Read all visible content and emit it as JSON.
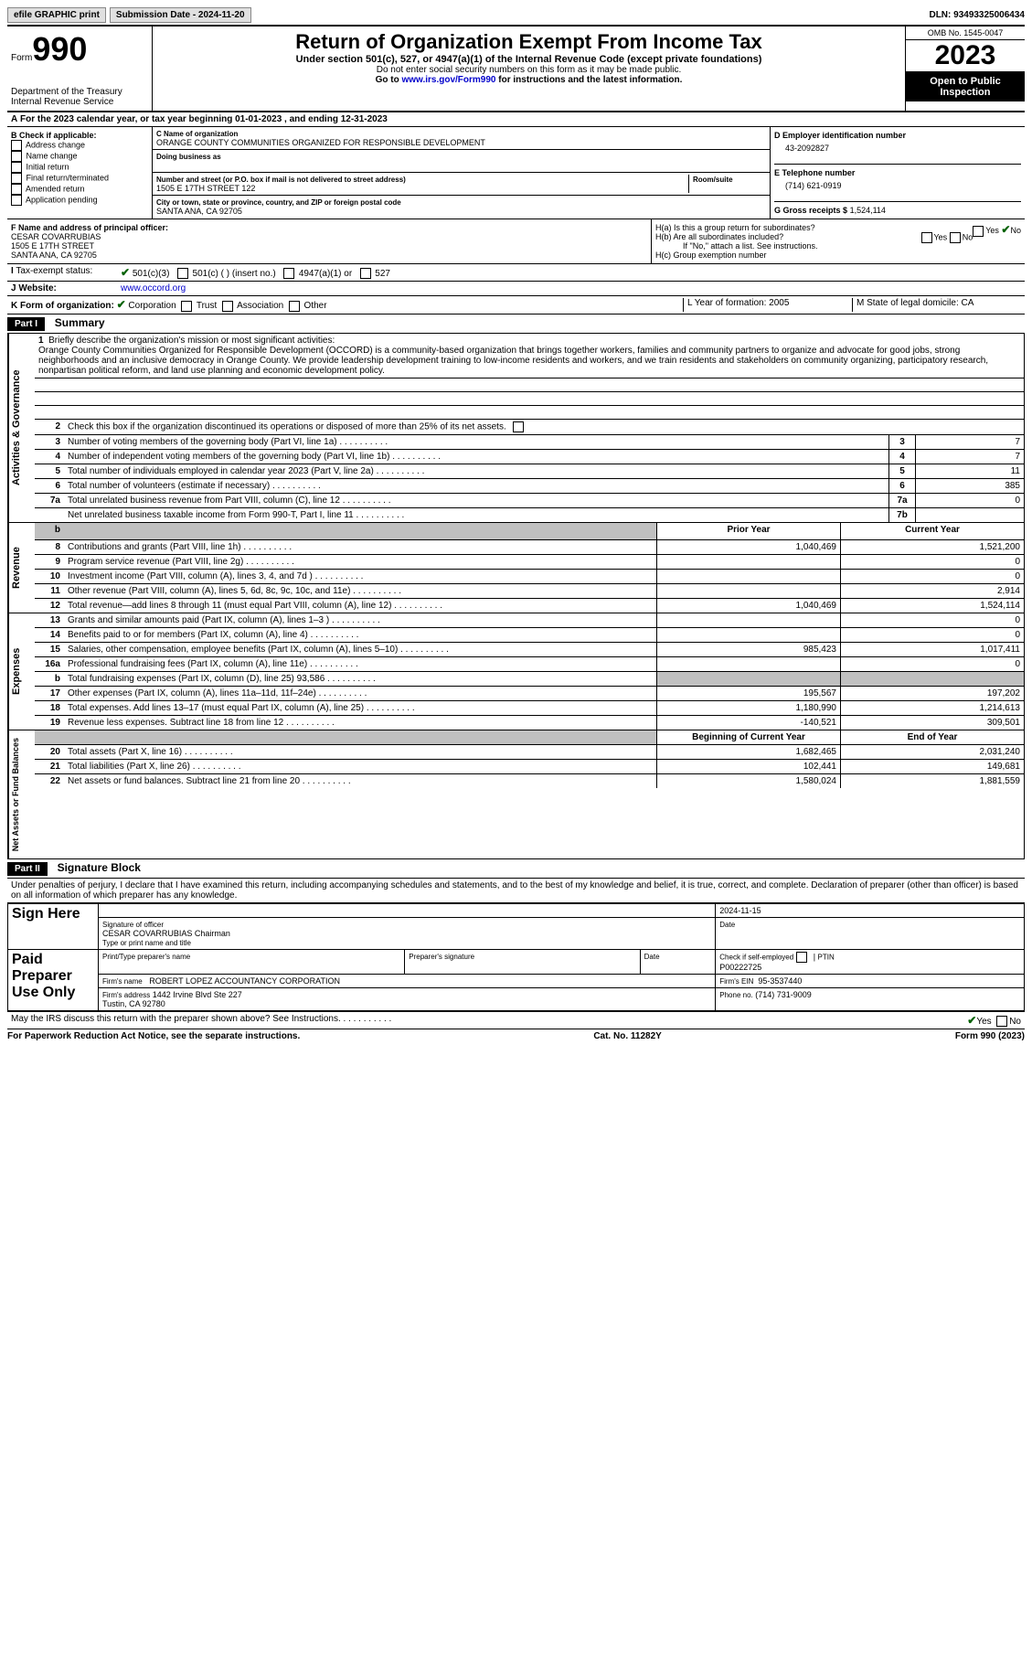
{
  "top": {
    "efile": "efile GRAPHIC print",
    "sub_label": "Submission Date - 2024-11-20",
    "dln": "DLN: 93493325006434"
  },
  "header": {
    "form_word": "Form",
    "form_num": "990",
    "dept": "Department of the Treasury\nInternal Revenue Service",
    "title": "Return of Organization Exempt From Income Tax",
    "sub1": "Under section 501(c), 527, or 4947(a)(1) of the Internal Revenue Code (except private foundations)",
    "sub2": "Do not enter social security numbers on this form as it may be made public.",
    "sub3": "Go to www.irs.gov/Form990 for instructions and the latest information.",
    "omb": "OMB No. 1545-0047",
    "year": "2023",
    "inspection": "Open to Public Inspection"
  },
  "A": "For the 2023 calendar year, or tax year beginning 01-01-2023   , and ending 12-31-2023",
  "B": {
    "label": "B Check if applicable:",
    "opts": [
      "Address change",
      "Name change",
      "Initial return",
      "Final return/terminated",
      "Amended return",
      "Application pending"
    ]
  },
  "C": {
    "name_lbl": "C Name of organization",
    "name": "ORANGE COUNTY COMMUNITIES ORGANIZED FOR RESPONSIBLE DEVELOPMENT",
    "dba_lbl": "Doing business as",
    "addr_lbl": "Number and street (or P.O. box if mail is not delivered to street address)",
    "addr": "1505 E 17TH STREET 122",
    "room_lbl": "Room/suite",
    "city_lbl": "City or town, state or province, country, and ZIP or foreign postal code",
    "city": "SANTA ANA, CA  92705"
  },
  "D": {
    "ein_lbl": "D Employer identification number",
    "ein": "43-2092827",
    "phone_lbl": "E Telephone number",
    "phone": "(714) 621-0919",
    "gross_lbl": "G Gross receipts $",
    "gross": "1,524,114"
  },
  "F": {
    "lbl": "F Name and address of principal officer:",
    "name": "CESAR COVARRUBIAS",
    "addr1": "1505 E 17TH STREET",
    "addr2": "SANTA ANA, CA  92705"
  },
  "H": {
    "a": "H(a)  Is this a group return for subordinates?",
    "a_yes": "Yes",
    "a_no": "No",
    "b": "H(b)  Are all subordinates included?",
    "b_note": "If \"No,\" attach a list. See instructions.",
    "c": "H(c)  Group exemption number"
  },
  "I": {
    "lbl": "Tax-exempt status:",
    "o1": "501(c)(3)",
    "o2": "501(c) (  ) (insert no.)",
    "o3": "4947(a)(1) or",
    "o4": "527"
  },
  "J": {
    "lbl": "Website:",
    "val": "www.occord.org"
  },
  "K": {
    "lbl": "K Form of organization:",
    "opts": [
      "Corporation",
      "Trust",
      "Association",
      "Other"
    ]
  },
  "L": "L Year of formation: 2005",
  "M": "M State of legal domicile: CA",
  "part1": {
    "hdr": "Part I",
    "title": "Summary",
    "q1_lbl": "Briefly describe the organization's mission or most significant activities:",
    "mission": "Orange County Communities Organized for Responsible Development (OCCORD) is a community-based organization that brings together workers, families and community partners to organize and advocate for good jobs, strong neighborhoods and an inclusive democracy in Orange County. We provide leadership development training to low-income residents and workers, and we train residents and stakeholders on community organizing, participatory research, nonpartisan political reform, and land use planning and economic development policy.",
    "q2": "Check this box      if the organization discontinued its operations or disposed of more than 25% of its net assets.",
    "rows_gov": [
      {
        "n": "3",
        "t": "Number of voting members of the governing body (Part VI, line 1a)",
        "box": "3",
        "v": "7"
      },
      {
        "n": "4",
        "t": "Number of independent voting members of the governing body (Part VI, line 1b)",
        "box": "4",
        "v": "7"
      },
      {
        "n": "5",
        "t": "Total number of individuals employed in calendar year 2023 (Part V, line 2a)",
        "box": "5",
        "v": "11"
      },
      {
        "n": "6",
        "t": "Total number of volunteers (estimate if necessary)",
        "box": "6",
        "v": "385"
      },
      {
        "n": "7a",
        "t": "Total unrelated business revenue from Part VIII, column (C), line 12",
        "box": "7a",
        "v": "0"
      },
      {
        "n": "",
        "t": "Net unrelated business taxable income from Form 990-T, Part I, line 11",
        "box": "7b",
        "v": ""
      }
    ],
    "prior_hdr": "Prior Year",
    "curr_hdr": "Current Year",
    "rows_rev": [
      {
        "n": "8",
        "t": "Contributions and grants (Part VIII, line 1h)",
        "p": "1,040,469",
        "c": "1,521,200"
      },
      {
        "n": "9",
        "t": "Program service revenue (Part VIII, line 2g)",
        "p": "",
        "c": "0"
      },
      {
        "n": "10",
        "t": "Investment income (Part VIII, column (A), lines 3, 4, and 7d )",
        "p": "",
        "c": "0"
      },
      {
        "n": "11",
        "t": "Other revenue (Part VIII, column (A), lines 5, 6d, 8c, 9c, 10c, and 11e)",
        "p": "",
        "c": "2,914"
      },
      {
        "n": "12",
        "t": "Total revenue—add lines 8 through 11 (must equal Part VIII, column (A), line 12)",
        "p": "1,040,469",
        "c": "1,524,114"
      }
    ],
    "rows_exp": [
      {
        "n": "13",
        "t": "Grants and similar amounts paid (Part IX, column (A), lines 1–3 )",
        "p": "",
        "c": "0"
      },
      {
        "n": "14",
        "t": "Benefits paid to or for members (Part IX, column (A), line 4)",
        "p": "",
        "c": "0"
      },
      {
        "n": "15",
        "t": "Salaries, other compensation, employee benefits (Part IX, column (A), lines 5–10)",
        "p": "985,423",
        "c": "1,017,411"
      },
      {
        "n": "16a",
        "t": "Professional fundraising fees (Part IX, column (A), line 11e)",
        "p": "",
        "c": "0"
      },
      {
        "n": "b",
        "t": "Total fundraising expenses (Part IX, column (D), line 25) 93,586",
        "p": "shaded",
        "c": "shaded"
      },
      {
        "n": "17",
        "t": "Other expenses (Part IX, column (A), lines 11a–11d, 11f–24e)",
        "p": "195,567",
        "c": "197,202"
      },
      {
        "n": "18",
        "t": "Total expenses. Add lines 13–17 (must equal Part IX, column (A), line 25)",
        "p": "1,180,990",
        "c": "1,214,613"
      },
      {
        "n": "19",
        "t": "Revenue less expenses. Subtract line 18 from line 12",
        "p": "-140,521",
        "c": "309,501"
      }
    ],
    "beg_hdr": "Beginning of Current Year",
    "end_hdr": "End of Year",
    "rows_net": [
      {
        "n": "20",
        "t": "Total assets (Part X, line 16)",
        "p": "1,682,465",
        "c": "2,031,240"
      },
      {
        "n": "21",
        "t": "Total liabilities (Part X, line 26)",
        "p": "102,441",
        "c": "149,681"
      },
      {
        "n": "22",
        "t": "Net assets or fund balances. Subtract line 21 from line 20",
        "p": "1,580,024",
        "c": "1,881,559"
      }
    ],
    "side_labels": {
      "gov": "Activities & Governance",
      "rev": "Revenue",
      "exp": "Expenses",
      "net": "Net Assets or Fund Balances"
    }
  },
  "part2": {
    "hdr": "Part II",
    "title": "Signature Block",
    "perjury": "Under penalties of perjury, I declare that I have examined this return, including accompanying schedules and statements, and to the best of my knowledge and belief, it is true, correct, and complete. Declaration of preparer (other than officer) is based on all information of which preparer has any knowledge.",
    "sign_here": "Sign Here",
    "sig_date": "2024-11-15",
    "sig_officer_lbl": "Signature of officer",
    "sig_officer": "CESAR COVARRUBIAS  Chairman",
    "type_lbl": "Type or print name and title",
    "date_lbl": "Date",
    "paid": "Paid Preparer Use Only",
    "prep_name_lbl": "Print/Type preparer's name",
    "prep_sig_lbl": "Preparer's signature",
    "check_self": "Check        if self-employed",
    "ptin_lbl": "PTIN",
    "ptin": "P00222725",
    "firm_name_lbl": "Firm's name",
    "firm_name": "ROBERT LOPEZ ACCOUNTANCY CORPORATION",
    "firm_ein_lbl": "Firm's EIN",
    "firm_ein": "95-3537440",
    "firm_addr_lbl": "Firm's address",
    "firm_addr": "1442 Irvine Blvd Ste 227\nTustin, CA  92780",
    "firm_phone_lbl": "Phone no.",
    "firm_phone": "(714) 731-9009",
    "discuss": "May the IRS discuss this return with the preparer shown above? See Instructions.",
    "yes": "Yes",
    "no": "No"
  },
  "footer": {
    "paperwork": "For Paperwork Reduction Act Notice, see the separate instructions.",
    "cat": "Cat. No. 11282Y",
    "form": "Form 990 (2023)"
  }
}
